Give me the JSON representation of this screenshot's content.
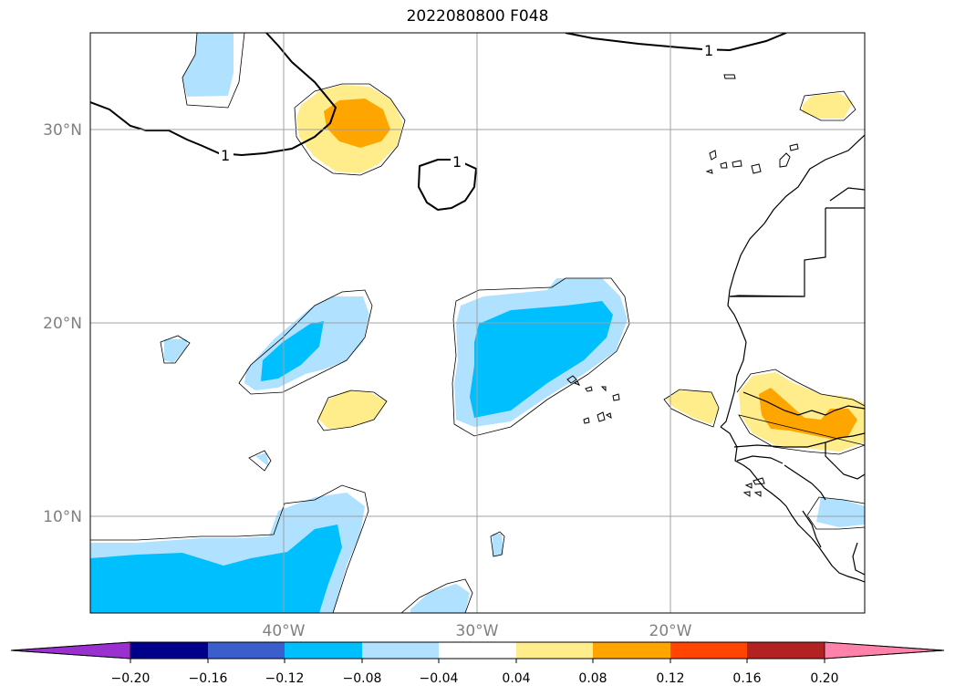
{
  "title": "2022080800 F048",
  "map": {
    "lat_labels": [
      "30°N",
      "20°N",
      "10°N"
    ],
    "lon_labels": [
      "40°W",
      "30°W",
      "20°W"
    ],
    "contour_label": "1",
    "extent": {
      "lon_min": -50,
      "lon_max": -10,
      "lat_min": 5,
      "lat_max": 35
    }
  },
  "colorbar": {
    "tick_labels": [
      "−0.20",
      "−0.16",
      "−0.12",
      "−0.08",
      "−0.04",
      "0.04",
      "0.08",
      "0.12",
      "0.16",
      "0.20"
    ],
    "colors": {
      "under": "#9b30d0",
      "bins": [
        "#00008b",
        "#3a5fcd",
        "#00bfff",
        "#b0e2ff",
        "#ffffff",
        "#ffec8b",
        "#ffa500",
        "#ff4500",
        "#b22222"
      ],
      "over": "#ff82ab"
    }
  }
}
